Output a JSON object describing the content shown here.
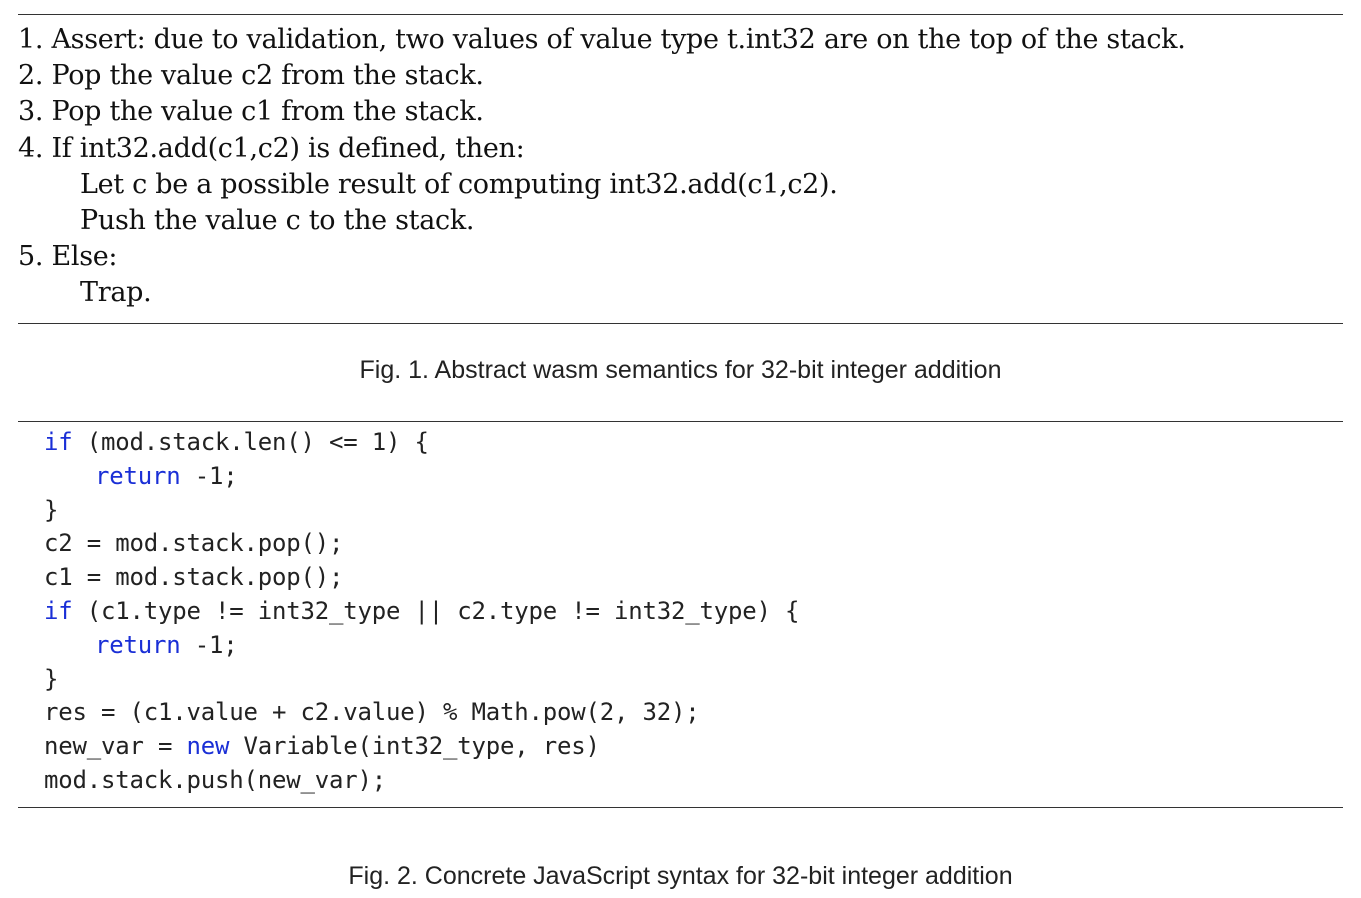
{
  "figure1": {
    "steps": [
      "1. Assert: due to validation, two values of value type t.int32 are on the top of the stack.",
      "2. Pop the value c2 from the stack.",
      "3. Pop the value c1 from the stack.",
      "4. If int32.add(c1,c2) is defined, then:",
      "Let c be a possible result of computing int32.add(c1,c2).",
      "Push the value c to the stack.",
      "5. Else:",
      "Trap."
    ],
    "caption": "Fig. 1.  Abstract wasm semantics for 32-bit integer addition"
  },
  "figure2": {
    "code": {
      "l1_kw": "if",
      "l1_rest": " (mod.stack.len() <= 1) {",
      "l2_kw": "return",
      "l2_rest": " -1;",
      "l3": "}",
      "l4": "c2 = mod.stack.pop();",
      "l5": "c1 = mod.stack.pop();",
      "l6_kw": "if",
      "l6_rest": " (c1.type != int32_type || c2.type != int32_type) {",
      "l7_kw": "return",
      "l7_rest": " -1;",
      "l8": "}",
      "l9": "res = (c1.value + c2.value) % Math.pow(2, 32);",
      "l10_pre": "new_var = ",
      "l10_kw": "new",
      "l10_rest": " Variable(int32_type, res)",
      "l11": "mod.stack.push(new_var);"
    },
    "caption": "Fig. 2.  Concrete JavaScript syntax for 32-bit integer addition"
  },
  "colors": {
    "keyword": "#1a2fd6",
    "text": "#111111",
    "rule": "#333333"
  }
}
